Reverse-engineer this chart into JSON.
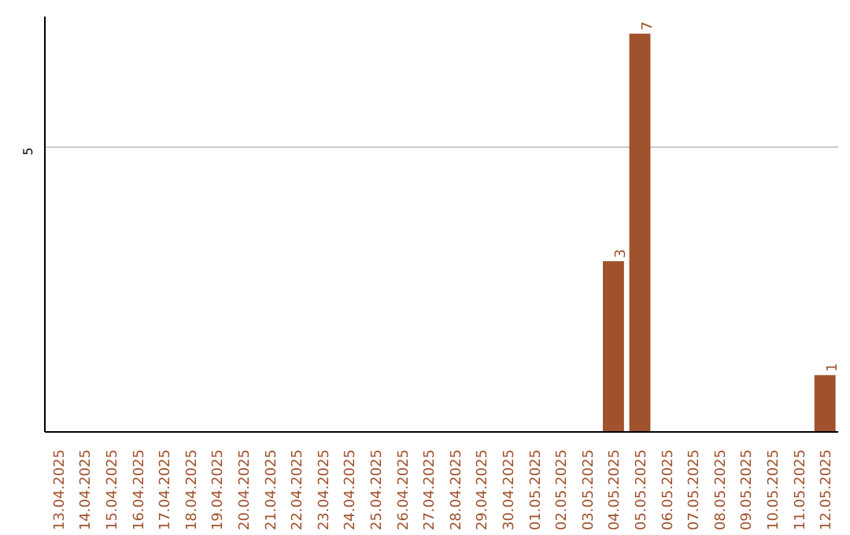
{
  "chart_data": {
    "type": "bar",
    "categories": [
      "13.04.2025",
      "14.04.2025",
      "15.04.2025",
      "16.04.2025",
      "17.04.2025",
      "18.04.2025",
      "19.04.2025",
      "20.04.2025",
      "21.04.2025",
      "22.04.2025",
      "23.04.2025",
      "24.04.2025",
      "25.04.2025",
      "26.04.2025",
      "27.04.2025",
      "28.04.2025",
      "29.04.2025",
      "30.04.2025",
      "01.05.2025",
      "02.05.2025",
      "03.05.2025",
      "04.05.2025",
      "05.05.2025",
      "06.05.2025",
      "07.05.2025",
      "08.05.2025",
      "09.05.2025",
      "10.05.2025",
      "11.05.2025",
      "12.05.2025"
    ],
    "values": [
      null,
      null,
      null,
      null,
      null,
      null,
      null,
      null,
      null,
      null,
      null,
      null,
      null,
      null,
      null,
      null,
      null,
      null,
      null,
      null,
      null,
      3,
      7,
      null,
      null,
      null,
      null,
      null,
      null,
      1
    ],
    "data_labels": true,
    "color": "#a0522d",
    "ylim": [
      0,
      7.3
    ],
    "yticks": [
      5
    ],
    "grid": "y"
  }
}
